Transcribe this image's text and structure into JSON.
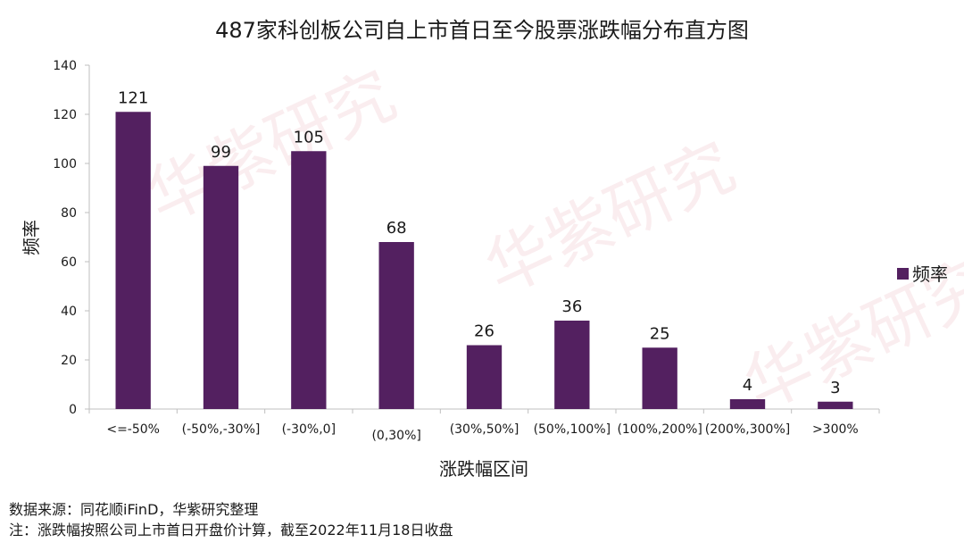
{
  "chart_data": {
    "type": "bar",
    "title": "487家科创板公司自上市首日至今股票涨跌幅分布直方图",
    "xlabel": "涨跌幅区间",
    "ylabel": "频率",
    "categories": [
      "<=-50%",
      "(-50%,-30%]",
      "(-30%,0]",
      "(0,30%]",
      "(30%,50%]",
      "(50%,100%]",
      "(100%,200%]",
      "(200%,300%]",
      ">300%"
    ],
    "series": [
      {
        "name": "频率",
        "values": [
          121,
          99,
          105,
          68,
          26,
          36,
          25,
          4,
          3
        ],
        "color": "#532060"
      }
    ],
    "ylim": [
      0,
      140
    ],
    "yticks": [
      0,
      20,
      40,
      60,
      80,
      100,
      120,
      140
    ],
    "data_labels": true,
    "grid": false,
    "legend_position": "right"
  },
  "watermark": "华紫研究",
  "footnotes": {
    "source": "数据来源：同花顺iFinD，华紫研究整理",
    "note": "注：涨跌幅按照公司上市首日开盘价计算，截至2022年11月18日收盘"
  }
}
